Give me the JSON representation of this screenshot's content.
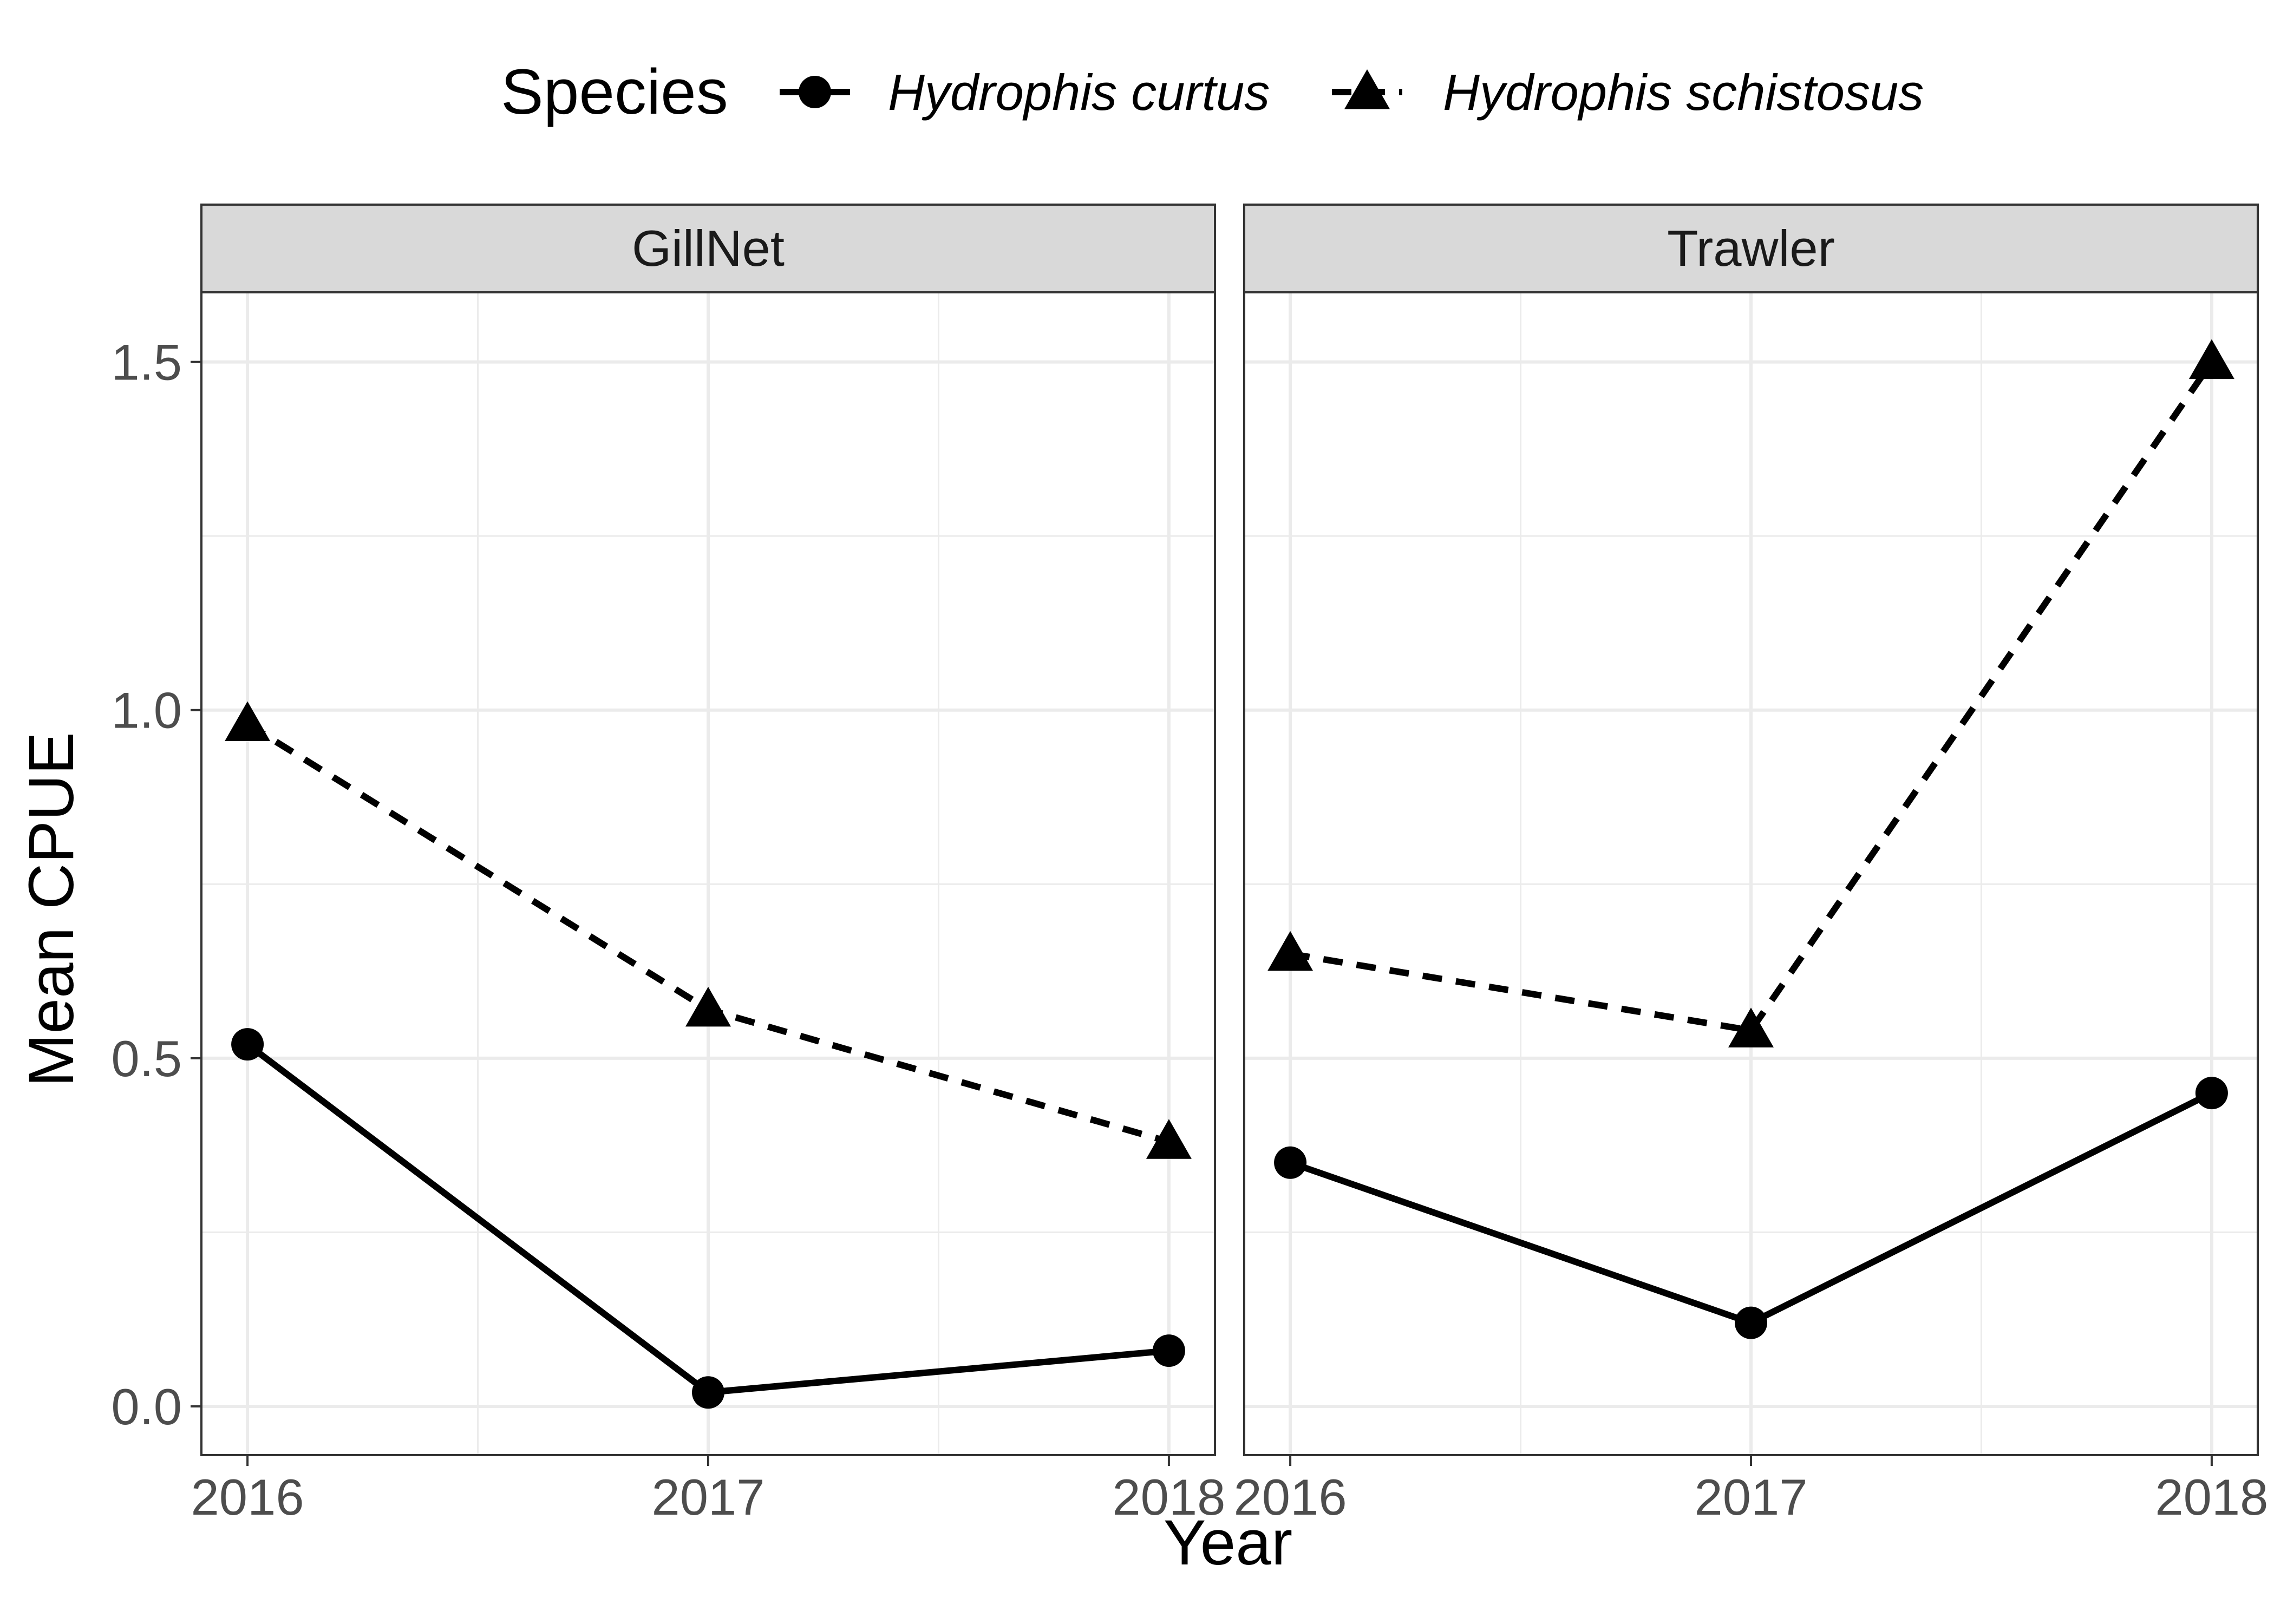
{
  "chart_data": {
    "type": "line",
    "xlabel": "Year",
    "ylabel": "Mean CPUE",
    "x": [
      2016,
      2017,
      2018
    ],
    "x_tick_labels": [
      "2016",
      "2017",
      "2018"
    ],
    "ylim": [
      -0.07,
      1.6
    ],
    "y_ticks": [
      0.0,
      0.5,
      1.0,
      1.5
    ],
    "y_tick_labels": [
      "0.0",
      "0.5",
      "1.0",
      "1.5"
    ],
    "grid": true,
    "legend": {
      "title": "Species",
      "placement": "top",
      "entries": [
        {
          "label": "Hydrophis curtus",
          "marker": "circle",
          "linetype": "solid"
        },
        {
          "label": "Hydrophis schistosus",
          "marker": "triangle",
          "linetype": "dashed"
        }
      ]
    },
    "panels": [
      {
        "name": "GillNet",
        "series": [
          {
            "name": "Hydrophis curtus",
            "values": [
              0.52,
              0.02,
              0.08
            ]
          },
          {
            "name": "Hydrophis schistosus",
            "values": [
              0.98,
              0.57,
              0.38
            ]
          }
        ]
      },
      {
        "name": "Trawler",
        "series": [
          {
            "name": "Hydrophis curtus",
            "values": [
              0.35,
              0.12,
              0.45
            ]
          },
          {
            "name": "Hydrophis schistosus",
            "values": [
              0.65,
              0.54,
              1.5
            ]
          }
        ]
      }
    ],
    "colors": {
      "line": "#000000",
      "grid": "#ebebeb",
      "strip": "#d9d9d9",
      "border": "#333333"
    }
  }
}
